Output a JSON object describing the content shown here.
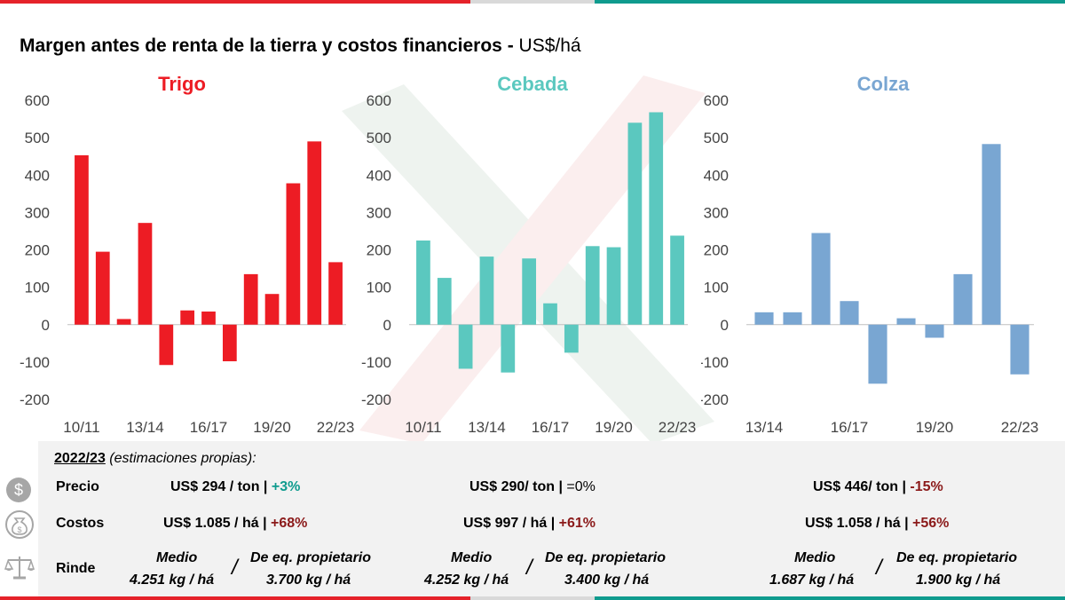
{
  "title": {
    "main": "Margen antes de renta de la tierra y costos financieros",
    "dash": " - ",
    "unit": "US$/há"
  },
  "colors": {
    "trigo": "#ed1c24",
    "cebada": "#5bc8bf",
    "colza": "#79a6d2",
    "teal": "#0f9b8e",
    "darkred": "#8b1a1a",
    "red": "#e5222a"
  },
  "chart_data": [
    {
      "type": "bar",
      "title": "Trigo",
      "categories": [
        "10/11",
        "11/12",
        "12/13",
        "13/14",
        "14/15",
        "15/16",
        "16/17",
        "17/18",
        "18/19",
        "19/20",
        "20/21",
        "21/22",
        "22/23"
      ],
      "tick_labels": [
        "10/11",
        "13/14",
        "16/17",
        "19/20",
        "22/23"
      ],
      "values": [
        453,
        195,
        15,
        272,
        -108,
        38,
        35,
        -98,
        135,
        82,
        378,
        490,
        167
      ],
      "ylim": [
        -200,
        600
      ],
      "yticks": [
        -200,
        -100,
        0,
        100,
        200,
        300,
        400,
        500,
        600
      ],
      "xlabel": "",
      "ylabel": ""
    },
    {
      "type": "bar",
      "title": "Cebada",
      "categories": [
        "10/11",
        "11/12",
        "12/13",
        "13/14",
        "14/15",
        "15/16",
        "16/17",
        "17/18",
        "18/19",
        "19/20",
        "20/21",
        "21/22",
        "22/23"
      ],
      "tick_labels": [
        "10/11",
        "13/14",
        "16/17",
        "19/20",
        "22/23"
      ],
      "values": [
        225,
        125,
        -118,
        182,
        -128,
        177,
        57,
        -75,
        210,
        207,
        540,
        568,
        238
      ],
      "ylim": [
        -200,
        600
      ],
      "yticks": [
        -200,
        -100,
        0,
        100,
        200,
        300,
        400,
        500,
        600
      ],
      "xlabel": "",
      "ylabel": ""
    },
    {
      "type": "bar",
      "title": "Colza",
      "categories": [
        "13/14",
        "14/15",
        "15/16",
        "16/17",
        "17/18",
        "18/19",
        "19/20",
        "20/21",
        "21/22",
        "22/23"
      ],
      "tick_labels": [
        "13/14",
        "16/17",
        "19/20",
        "22/23"
      ],
      "values": [
        33,
        33,
        245,
        63,
        -158,
        17,
        -35,
        135,
        483,
        -133
      ],
      "ylim": [
        -200,
        600
      ],
      "yticks": [
        -200,
        -100,
        0,
        100,
        200,
        300,
        400,
        500,
        600
      ],
      "xlabel": "",
      "ylabel": ""
    }
  ],
  "info": {
    "header": "2022/23",
    "header_note": " (estimaciones propias):",
    "labels": {
      "precio": "Precio",
      "costos": "Costos",
      "rinde": "Rinde"
    },
    "icons": [
      "dollar-coin-icon",
      "money-bag-icon",
      "balance-scale-icon"
    ],
    "crops": [
      {
        "precio": "US$ 294 / ton",
        "sep1": " | ",
        "precio_change": "+3%",
        "costos": "US$ 1.085 / há",
        "sep2": " | ",
        "costos_change": "+68%",
        "medio_label": "Medio",
        "medio_value": "4.251 kg / há",
        "bar": "/",
        "eq_label": "De eq. propietario",
        "eq_value": "3.700 kg / há"
      },
      {
        "precio": "US$ 290/ ton",
        "sep1": " | ",
        "precio_change": "=0%",
        "costos": "US$ 997 / há",
        "sep2": " | ",
        "costos_change": "+61%",
        "medio_label": "Medio",
        "medio_value": "4.252 kg / há",
        "bar": "/",
        "eq_label": "De eq. propietario",
        "eq_value": "3.400 kg / há"
      },
      {
        "precio": "US$ 446/ ton",
        "sep1": " | ",
        "precio_change": "-15%",
        "costos": "US$ 1.058 / há",
        "sep2": " | ",
        "costos_change": "+56%",
        "medio_label": "Medio",
        "medio_value": "1.687 kg / há",
        "bar": "/",
        "eq_label": "De eq. propietario",
        "eq_value": "1.900 kg / há"
      }
    ]
  }
}
